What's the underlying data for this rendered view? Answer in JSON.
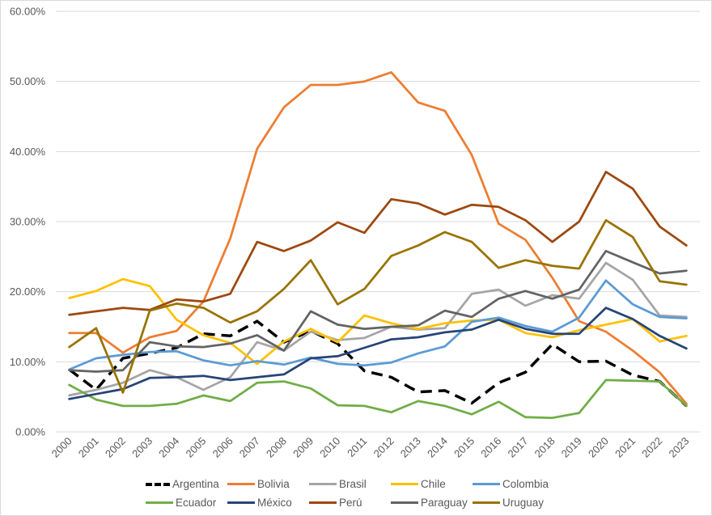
{
  "chart_data": {
    "type": "line",
    "title": "",
    "xlabel": "",
    "ylabel": "",
    "ylim": [
      0,
      60
    ],
    "y_ticks": [
      "0.00%",
      "10.00%",
      "20.00%",
      "30.00%",
      "40.00%",
      "50.00%",
      "60.00%"
    ],
    "y_tick_values": [
      0,
      10,
      20,
      30,
      40,
      50,
      60
    ],
    "grid": true,
    "legend_position": "bottom",
    "categories": [
      "2000",
      "2001",
      "2002",
      "2003",
      "2004",
      "2005",
      "2006",
      "2007",
      "2008",
      "2009",
      "2010",
      "2011",
      "2012",
      "2013",
      "2014",
      "2015",
      "2016",
      "2017",
      "2018",
      "2019",
      "2020",
      "2021",
      "2022",
      "2023"
    ],
    "series": [
      {
        "name": "Argentina",
        "color": "#000000",
        "dashed": true,
        "values": [
          8.9,
          6.0,
          10.5,
          11.2,
          12.0,
          14.0,
          13.7,
          15.8,
          12.8,
          14.4,
          12.6,
          8.7,
          7.8,
          5.7,
          5.9,
          4.1,
          7.0,
          8.5,
          12.5,
          10.0,
          10.1,
          8.1,
          7.2,
          3.7
        ]
      },
      {
        "name": "Bolivia",
        "color": "#ED7D31",
        "dashed": false,
        "values": [
          14.1,
          14.1,
          11.3,
          13.5,
          14.4,
          18.6,
          27.6,
          40.4,
          46.3,
          49.5,
          49.5,
          50.0,
          51.3,
          47.0,
          45.8,
          39.5,
          29.7,
          27.4,
          22.0,
          15.8,
          14.3,
          11.6,
          8.5,
          4.0
        ]
      },
      {
        "name": "Brasil",
        "color": "#A5A5A5",
        "dashed": false,
        "values": [
          5.2,
          6.0,
          7.0,
          8.8,
          7.8,
          6.0,
          7.8,
          12.8,
          11.6,
          14.3,
          13.1,
          13.4,
          15.0,
          14.6,
          14.8,
          19.7,
          20.3,
          18.0,
          19.5,
          19.0,
          24.1,
          21.7,
          16.6,
          16.4
        ]
      },
      {
        "name": "Chile",
        "color": "#FFC000",
        "dashed": false,
        "values": [
          19.1,
          20.1,
          21.8,
          20.8,
          16.0,
          13.8,
          12.7,
          9.7,
          12.9,
          14.7,
          12.8,
          16.6,
          15.5,
          14.7,
          15.5,
          15.9,
          16.0,
          14.1,
          13.5,
          14.5,
          15.3,
          16.1,
          12.9,
          13.7
        ]
      },
      {
        "name": "Colombia",
        "color": "#5B9BD5",
        "dashed": false,
        "values": [
          8.9,
          10.5,
          11.0,
          11.4,
          11.5,
          10.2,
          9.5,
          10.1,
          9.6,
          10.6,
          9.7,
          9.5,
          9.9,
          11.2,
          12.2,
          15.7,
          16.3,
          15.1,
          14.3,
          16.3,
          21.6,
          18.2,
          16.4,
          16.2
        ]
      },
      {
        "name": "Ecuador",
        "color": "#70AD47",
        "dashed": false,
        "values": [
          6.7,
          4.6,
          3.7,
          3.7,
          4.0,
          5.2,
          4.4,
          7.0,
          7.2,
          6.2,
          3.8,
          3.7,
          2.8,
          4.4,
          3.7,
          2.5,
          4.3,
          2.1,
          2.0,
          2.7,
          7.4,
          7.3,
          7.2,
          3.7
        ]
      },
      {
        "name": "México",
        "color": "#264478",
        "dashed": false,
        "values": [
          4.7,
          5.4,
          6.1,
          7.7,
          7.8,
          8.0,
          7.4,
          7.8,
          8.2,
          10.5,
          10.8,
          12.0,
          13.2,
          13.5,
          14.2,
          14.6,
          16.0,
          14.7,
          14.0,
          14.0,
          17.7,
          16.1,
          13.7,
          11.9
        ]
      },
      {
        "name": "Perú",
        "color": "#9E480E",
        "dashed": false,
        "values": [
          16.7,
          17.2,
          17.7,
          17.4,
          18.9,
          18.6,
          19.7,
          27.1,
          25.8,
          27.3,
          29.9,
          28.4,
          33.2,
          32.6,
          31.0,
          32.4,
          32.1,
          30.2,
          27.1,
          30.0,
          37.1,
          34.7,
          29.3,
          26.6
        ]
      },
      {
        "name": "Paraguay",
        "color": "#636363",
        "dashed": false,
        "values": [
          8.8,
          8.6,
          8.8,
          12.8,
          12.2,
          12.1,
          12.6,
          13.8,
          11.6,
          17.2,
          15.3,
          14.7,
          15.0,
          15.2,
          17.3,
          16.4,
          19.0,
          20.1,
          19.0,
          20.3,
          25.8,
          24.2,
          22.6,
          23.0
        ]
      },
      {
        "name": "Uruguay",
        "color": "#997300",
        "dashed": false,
        "values": [
          12.1,
          14.8,
          5.6,
          17.3,
          18.3,
          17.7,
          15.6,
          17.2,
          20.4,
          24.5,
          18.2,
          20.4,
          25.1,
          26.6,
          28.5,
          27.1,
          23.4,
          24.5,
          23.7,
          23.3,
          30.2,
          27.8,
          21.5,
          21.0
        ]
      }
    ]
  }
}
